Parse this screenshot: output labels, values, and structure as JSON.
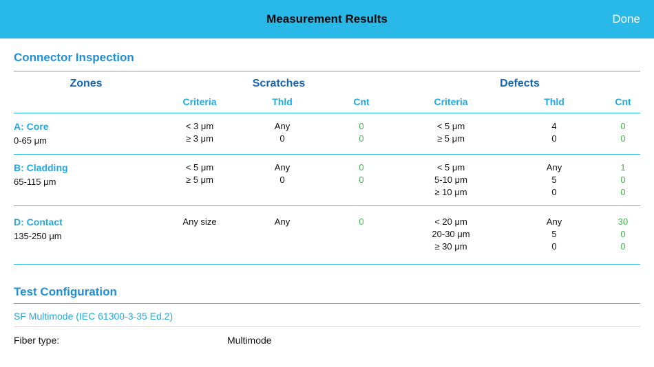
{
  "topbar": {
    "title": "Measurement Results",
    "done": "Done"
  },
  "connector_inspection": {
    "title": "Connector Inspection",
    "table": {
      "headers": {
        "zones": "Zones",
        "scratches": "Scratches",
        "defects": "Defects"
      },
      "sub_headers": {
        "criteria": "Criteria",
        "thld": "Thld",
        "cnt": "Cnt"
      },
      "rows": [
        {
          "zone_name": "A: Core",
          "zone_range": "0-65 μm",
          "scratches": {
            "criteria": [
              "< 3 μm",
              "≥ 3 μm"
            ],
            "thld": [
              "Any",
              "0"
            ],
            "cnt": [
              "0",
              "0"
            ]
          },
          "defects": {
            "criteria": [
              "< 5 μm",
              "≥ 5 μm"
            ],
            "thld": [
              "4",
              "0"
            ],
            "cnt": [
              "0",
              "0"
            ]
          }
        },
        {
          "zone_name": "B: Cladding",
          "zone_range": "65-115 μm",
          "scratches": {
            "criteria": [
              "< 5 μm",
              "≥ 5 μm"
            ],
            "thld": [
              "Any",
              "0"
            ],
            "cnt": [
              "0",
              "0"
            ]
          },
          "defects": {
            "criteria": [
              "< 5 μm",
              "5-10 μm",
              "≥ 10 μm"
            ],
            "thld": [
              "Any",
              "5",
              "0"
            ],
            "cnt": [
              "1",
              "0",
              "0"
            ]
          }
        },
        {
          "zone_name": "D: Contact",
          "zone_range": "135-250 μm",
          "scratches": {
            "criteria": [
              "Any size"
            ],
            "thld": [
              "Any"
            ],
            "cnt": [
              "0"
            ]
          },
          "defects": {
            "criteria": [
              "< 20 μm",
              "20-30 μm",
              "≥ 30 μm"
            ],
            "thld": [
              "Any",
              "5",
              "0"
            ],
            "cnt": [
              "30",
              "0",
              "0"
            ]
          }
        }
      ]
    }
  },
  "test_configuration": {
    "title": "Test Configuration",
    "standard": "SF Multimode  (IEC 61300-3-35 Ed.2)",
    "fields": [
      {
        "label": "Fiber type:",
        "value": "Multimode"
      }
    ]
  },
  "colors": {
    "topbar": "#29b9e8",
    "section_title": "#1e90d8",
    "group_header": "#1766b4",
    "cyan_text": "#22a7e0",
    "count_green": "#3db54a"
  }
}
